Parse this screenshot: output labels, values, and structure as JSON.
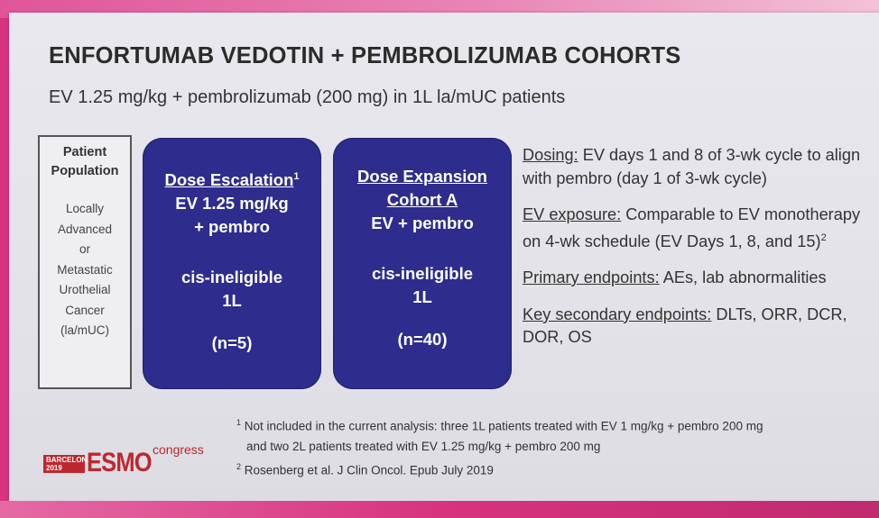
{
  "title": "ENFORTUMAB VEDOTIN + PEMBROLIZUMAB COHORTS",
  "subtitle": "EV 1.25 mg/kg + pembrolizumab (200 mg) in 1L la/mUC patients",
  "population": {
    "header_lines": [
      "Patient",
      "Population"
    ],
    "body_lines": [
      "Locally",
      "Advanced",
      "or",
      "Metastatic",
      "Urothelial",
      "Cancer",
      "(la/mUC)"
    ]
  },
  "cohorts": [
    {
      "title": "Dose Escalation",
      "superscript": "1",
      "line2": "EV 1.25 mg/kg",
      "line3": "+ pembro",
      "eligibility": "cis-ineligible",
      "line_of_therapy": "1L",
      "n": "(n=5)"
    },
    {
      "title": "Dose Expansion",
      "line2": "Cohort A",
      "line3": "EV + pembro",
      "eligibility": "cis-ineligible",
      "line_of_therapy": "1L",
      "n": "(n=40)"
    }
  ],
  "details": [
    {
      "label": "Dosing:",
      "text": " EV days 1 and 8 of 3-wk cycle to align with pembro (day 1 of 3-wk cycle)"
    },
    {
      "label": "EV exposure:",
      "text": "  Comparable to EV monotherapy on 4-wk schedule (EV Days 1, 8, and 15)",
      "sup": "2"
    },
    {
      "label": "Primary endpoints:",
      "text": " AEs, lab abnormalities"
    },
    {
      "label": "Key secondary endpoints:",
      "text": " DLTs, ORR, DCR, DOR, OS"
    }
  ],
  "footnotes": {
    "fn1_mark": "1",
    "fn1_line1": " Not included in the current analysis: three 1L patients treated with EV 1 mg/kg + pembro 200 mg",
    "fn1_line2": "and two 2L patients treated with EV 1.25 mg/kg + pembro 200 mg",
    "fn2_mark": "2",
    "fn2_text": " Rosenberg et al. J Clin Oncol. Epub July 2019"
  },
  "logo": {
    "city": "BARCELONA",
    "year": "2019",
    "brand": "ESMO",
    "suffix": "congress"
  }
}
